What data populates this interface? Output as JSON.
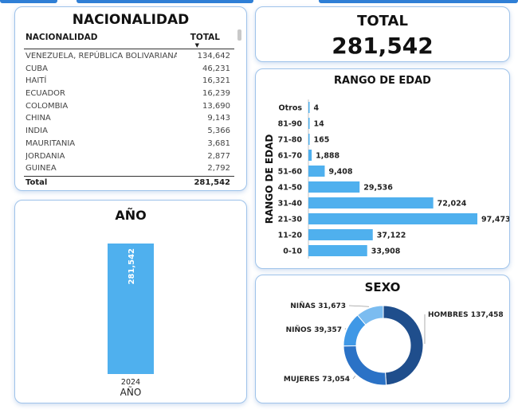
{
  "nacionalidad": {
    "title": "NACIONALIDAD",
    "col_country": "NACIONALIDAD",
    "col_total": "TOTAL",
    "rows": [
      {
        "country": "VENEZUELA, REPÚBLICA BOLIVARIANA DE",
        "total": "134,642"
      },
      {
        "country": "CUBA",
        "total": "46,231"
      },
      {
        "country": "HAITÍ",
        "total": "16,321"
      },
      {
        "country": "ECUADOR",
        "total": "16,239"
      },
      {
        "country": "COLOMBIA",
        "total": "13,690"
      },
      {
        "country": "CHINA",
        "total": "9,143"
      },
      {
        "country": "INDIA",
        "total": "5,366"
      },
      {
        "country": "MAURITANIA",
        "total": "3,681"
      },
      {
        "country": "JORDANIA",
        "total": "2,877"
      },
      {
        "country": "GUINEA",
        "total": "2,792"
      }
    ],
    "total_label": "Total",
    "total_value": "281,542"
  },
  "total": {
    "title": "TOTAL",
    "value": "281,542"
  },
  "colors": {
    "bar": "#4fb0ee",
    "donut": [
      "#1f4e8c",
      "#2b72c6",
      "#3f98e6",
      "#7bbcf0"
    ]
  },
  "chart_data": [
    {
      "type": "bar",
      "orientation": "horizontal",
      "title": "RANGO DE EDAD",
      "ylabel": "RANGO DE EDAD",
      "categories": [
        "Otros",
        "81-90",
        "71-80",
        "61-70",
        "51-60",
        "41-50",
        "31-40",
        "21-30",
        "11-20",
        "0-10"
      ],
      "values": [
        4,
        14,
        165,
        1888,
        9408,
        29536,
        72024,
        97473,
        37122,
        33908
      ],
      "labels": [
        "4",
        "14",
        "165",
        "1,888",
        "9,408",
        "29,536",
        "72,024",
        "97,473",
        "37,122",
        "33,908"
      ]
    },
    {
      "type": "bar",
      "title": "AÑO",
      "xlabel": "AÑO",
      "categories": [
        "2024"
      ],
      "values": [
        281542
      ],
      "labels": [
        "281,542"
      ]
    },
    {
      "type": "pie",
      "donut": true,
      "title": "SEXO",
      "categories": [
        "HOMBRES",
        "MUJERES",
        "NIÑOS",
        "NIÑAS"
      ],
      "values": [
        137458,
        73054,
        39357,
        31673
      ],
      "labels": [
        "HOMBRES 137,458",
        "MUJERES 73,054",
        "NIÑOS 39,357",
        "NIÑAS 31,673"
      ]
    }
  ]
}
